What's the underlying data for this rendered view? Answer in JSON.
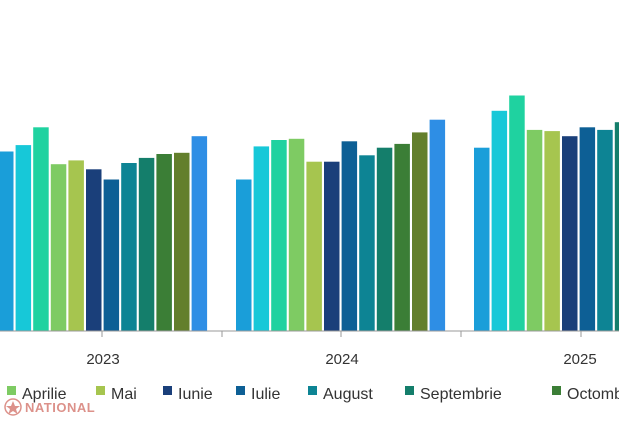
{
  "chart_data": {
    "type": "bar",
    "title": "",
    "xlabel": "",
    "ylabel": "",
    "grid": false,
    "legend_position": "bottom",
    "ylim": [
      0,
      260
    ],
    "categories": [
      "2023",
      "2024",
      "2025"
    ],
    "series": [
      {
        "name": "",
        "color": "#1a9ed9",
        "values": [
          141,
          119,
          144
        ]
      },
      {
        "name": "",
        "color": "#17c8d8",
        "values": [
          146,
          145,
          173
        ]
      },
      {
        "name": "",
        "color": "#1fd2a0",
        "values": [
          160,
          150,
          185
        ]
      },
      {
        "name": "Aprilie",
        "color": "#7ecb63",
        "values": [
          131,
          151,
          158
        ]
      },
      {
        "name": "Mai",
        "color": "#a6c54f",
        "values": [
          134,
          133,
          157
        ]
      },
      {
        "name": "Iunie",
        "color": "#1a3f7a",
        "values": [
          127,
          133,
          153
        ]
      },
      {
        "name": "Iulie",
        "color": "#0d5f95",
        "values": [
          119,
          149,
          160
        ]
      },
      {
        "name": "August",
        "color": "#0d8494",
        "values": [
          132,
          138,
          158
        ]
      },
      {
        "name": "Septembrie",
        "color": "#147e6b",
        "values": [
          136,
          144,
          164
        ]
      },
      {
        "name": "Octombrie",
        "color": "#3b7e36",
        "values": [
          139,
          147,
          null
        ]
      },
      {
        "name": "",
        "color": "#637f2c",
        "values": [
          140,
          156,
          null
        ]
      },
      {
        "name": "",
        "color": "#2e8ee5",
        "values": [
          153,
          166,
          null
        ]
      }
    ],
    "legend_visible": [
      "Aprilie",
      "Mai",
      "Iunie",
      "Iulie",
      "August",
      "Septembrie",
      "Octombrie"
    ]
  },
  "watermark": {
    "text": "NATIONAL"
  },
  "colors": {
    "axis": "#9a9a9a",
    "text": "#333333",
    "brand": "#c0392b"
  }
}
